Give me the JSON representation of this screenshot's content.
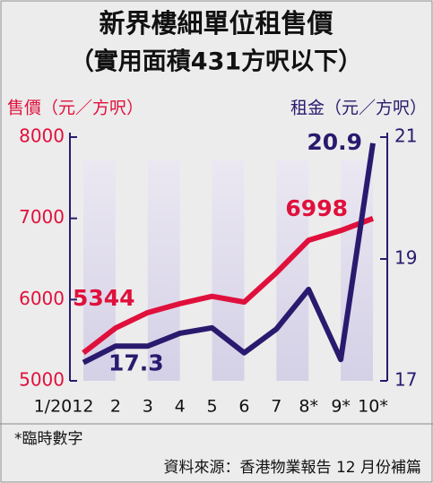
{
  "chart_data": {
    "type": "line",
    "title": "新界樓細單位租售價",
    "subtitle": "（實用面積431方呎以下）",
    "y_label": "售價（元／方呎）",
    "y2_label": "租金（元／方呎）",
    "categories": [
      "1/2012",
      "2",
      "3",
      "4",
      "5",
      "6",
      "7",
      "8*",
      "9*",
      "10*"
    ],
    "series": [
      {
        "name": "售價",
        "color": "#e0103c",
        "values": [
          5344,
          5650,
          5840,
          5950,
          6040,
          5970,
          6330,
          6730,
          6850,
          6998
        ],
        "value_labels": [
          "5344",
          null,
          null,
          null,
          null,
          null,
          null,
          null,
          null,
          "6998"
        ]
      },
      {
        "name": "租金",
        "color": "#2a1a6e",
        "axis": "y2",
        "values": [
          17.3,
          17.57,
          17.57,
          17.78,
          17.87,
          17.46,
          17.85,
          18.5,
          17.35,
          20.9
        ],
        "value_labels": [
          "17.3",
          null,
          null,
          null,
          null,
          null,
          null,
          null,
          null,
          "20.9"
        ]
      }
    ],
    "ylim": [
      5000,
      8000
    ],
    "yticks": [
      5000,
      6000,
      7000,
      8000
    ],
    "y2lim": [
      17,
      21
    ],
    "y2ticks": [
      17,
      19,
      21
    ],
    "notes": [
      "*臨時數字",
      "資料來源：香港物業報告 12 月份補篇"
    ]
  }
}
